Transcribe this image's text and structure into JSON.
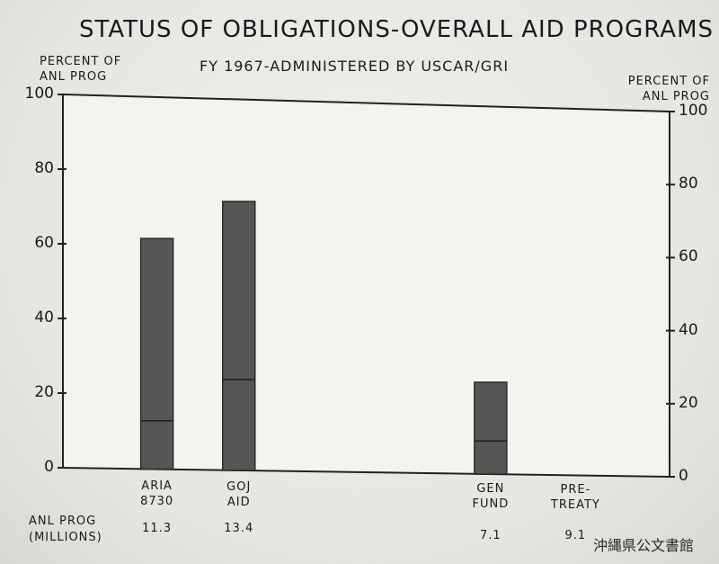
{
  "chart_data": {
    "type": "bar",
    "title": "STATUS OF OBLIGATIONS-OVERALL AID PROGRAMS",
    "subtitle": "FY 1967-ADMINISTERED BY USCAR/GRI",
    "ylabel_left": [
      "PERCENT OF",
      "ANL PROG"
    ],
    "ylabel_right": [
      "PERCENT OF",
      "ANL PROG"
    ],
    "ylim": [
      0,
      100
    ],
    "yticks": [
      "0",
      "20",
      "40",
      "60",
      "80",
      "100"
    ],
    "categories": [
      {
        "label": [
          "ARIA",
          "8730"
        ],
        "value": 62,
        "inner_mark": 13,
        "amount": "11.3"
      },
      {
        "label": [
          "GOJ",
          "AID"
        ],
        "value": 72.5,
        "inner_mark": 24.5,
        "amount": "13.4"
      },
      {
        "label": [
          "GEN",
          "FUND"
        ],
        "value": 25,
        "inner_mark": 9,
        "amount": "7.1"
      },
      {
        "label": [
          "PRE-",
          "TREATY"
        ],
        "value": 0,
        "inner_mark": 0,
        "amount": "9.1"
      }
    ],
    "amount_label": [
      "ANL PROG",
      "(MILLIONS)"
    ],
    "bar_color": "#565656"
  },
  "archive_mark": "沖縄県公文書館"
}
